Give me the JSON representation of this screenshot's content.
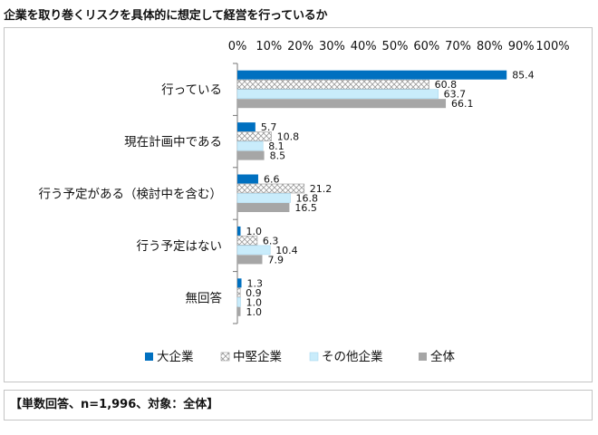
{
  "title": "企業を取り巻くリスクを具体的に想定して経営を行っているか",
  "note": "【単数回答、n=1,996、対象：全体】",
  "colors": {
    "large": "#0070c0",
    "mid": "#ffffff",
    "mid_hatch": "#9a9a9a",
    "other": "#c9ecfb",
    "total": "#a6a6a6"
  },
  "chart_data": {
    "type": "bar",
    "orientation": "horizontal",
    "xlim": [
      0,
      100
    ],
    "tick_labels": [
      "0%",
      "10%",
      "20%",
      "30%",
      "40%",
      "50%",
      "60%",
      "70%",
      "80%",
      "90%",
      "100%"
    ],
    "grid": false,
    "legend_position": "bottom",
    "categories": [
      "行っている",
      "現在計画中である",
      "行う予定がある（検討中を含む）",
      "行う予定はない",
      "無回答"
    ],
    "series": [
      {
        "name": "大企業",
        "values": [
          85.4,
          5.7,
          6.6,
          1.0,
          1.3
        ],
        "labels": [
          "85.4",
          "5.7",
          "6.6",
          "1.0",
          "1.3"
        ],
        "pattern": "solid",
        "color": "#0070c0"
      },
      {
        "name": "中堅企業",
        "values": [
          60.8,
          10.8,
          21.2,
          6.3,
          0.9
        ],
        "labels": [
          "60.8",
          "10.8",
          "21.2",
          "6.3",
          "0.9"
        ],
        "pattern": "crosshatch",
        "color": "#ffffff"
      },
      {
        "name": "その他企業",
        "values": [
          63.7,
          8.1,
          16.8,
          10.4,
          1.0
        ],
        "labels": [
          "63.7",
          "8.1",
          "16.8",
          "10.4",
          "1.0"
        ],
        "pattern": "solid",
        "color": "#c9ecfb"
      },
      {
        "name": "全体",
        "values": [
          66.1,
          8.5,
          16.5,
          7.9,
          1.0
        ],
        "labels": [
          "66.1",
          "8.5",
          "16.5",
          "7.9",
          "1.0"
        ],
        "pattern": "solid",
        "color": "#a6a6a6"
      }
    ]
  }
}
